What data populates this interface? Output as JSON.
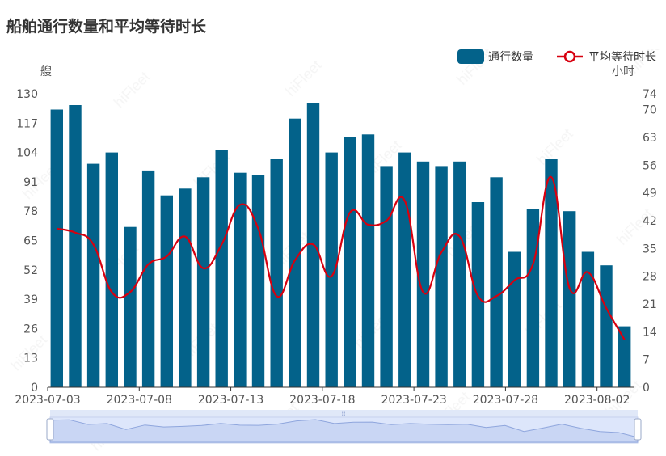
{
  "chart_data": {
    "type": "bar",
    "title": "船舶通行数量和平均等待时长",
    "x": [
      "2023-07-03",
      "2023-07-04",
      "2023-07-05",
      "2023-07-06",
      "2023-07-07",
      "2023-07-08",
      "2023-07-09",
      "2023-07-10",
      "2023-07-11",
      "2023-07-12",
      "2023-07-13",
      "2023-07-14",
      "2023-07-15",
      "2023-07-16",
      "2023-07-17",
      "2023-07-18",
      "2023-07-19",
      "2023-07-20",
      "2023-07-21",
      "2023-07-22",
      "2023-07-23",
      "2023-07-24",
      "2023-07-25",
      "2023-07-26",
      "2023-07-27",
      "2023-07-28",
      "2023-07-29",
      "2023-07-30",
      "2023-07-31",
      "2023-08-01",
      "2023-08-02",
      "2023-08-03"
    ],
    "x_tick_labels": [
      "2023-07-03",
      "2023-07-08",
      "2023-07-13",
      "2023-07-18",
      "2023-07-23",
      "2023-07-28",
      "2023-08-02"
    ],
    "series": [
      {
        "name": "通行数量",
        "type": "bar",
        "axis": "left",
        "color": "#03628a",
        "values": [
          123,
          125,
          99,
          104,
          71,
          96,
          85,
          88,
          93,
          105,
          95,
          94,
          101,
          119,
          126,
          104,
          111,
          112,
          98,
          104,
          100,
          98,
          100,
          82,
          93,
          60,
          79,
          101,
          78,
          60,
          54,
          27
        ]
      },
      {
        "name": "平均等待时长",
        "type": "line",
        "axis": "right",
        "color": "#d7000f",
        "values": [
          40,
          39,
          36,
          24,
          24,
          31,
          33,
          38,
          30,
          36,
          46,
          40,
          23,
          32,
          36,
          28,
          44,
          41,
          42,
          47,
          24,
          34,
          38,
          23,
          23,
          27,
          31,
          53,
          25,
          29,
          20,
          12
        ]
      }
    ],
    "y_left": {
      "unit": "艘",
      "ylim": [
        0,
        130
      ],
      "ticks": [
        0,
        13,
        26,
        39,
        52,
        65,
        78,
        91,
        104,
        117,
        130
      ]
    },
    "y_right": {
      "unit": "小时",
      "ylim": [
        0,
        74
      ],
      "ticks": [
        0,
        7,
        14,
        21,
        28,
        35,
        42,
        49,
        56,
        63,
        70,
        74
      ]
    },
    "legend": {
      "placement": "top-right"
    },
    "grid": false,
    "zoom_slider": true
  }
}
